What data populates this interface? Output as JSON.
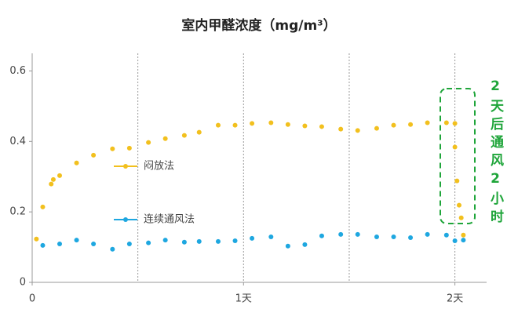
{
  "chart_data": {
    "type": "scatter",
    "title": "室内甲醛浓度（mg/m³）",
    "xlim": [
      0,
      2.15
    ],
    "ylim": [
      0,
      0.65
    ],
    "xticks": [
      0,
      {
        "value": 1,
        "label": "1天"
      },
      {
        "value": 2,
        "label": "2天"
      }
    ],
    "yticks": [
      0,
      0.2,
      0.4,
      0.6
    ],
    "x_gridlines": [
      0.5,
      1,
      1.5,
      2
    ],
    "legend_position": "center-left",
    "annotation": "2天后通风2小时",
    "series": [
      {
        "name": "闷放法",
        "color": "#f2c01e",
        "x": [
          0.02,
          0.05,
          0.09,
          0.1,
          0.13,
          0.21,
          0.29,
          0.38,
          0.46,
          0.55,
          0.63,
          0.72,
          0.79,
          0.88,
          0.96,
          1.04,
          1.13,
          1.21,
          1.29,
          1.37,
          1.46,
          1.54,
          1.63,
          1.71,
          1.79,
          1.87,
          1.96,
          2.0,
          2.0,
          2.01,
          2.02,
          2.03,
          2.04
        ],
        "values": [
          0.123,
          0.214,
          0.279,
          0.292,
          0.303,
          0.339,
          0.361,
          0.379,
          0.381,
          0.397,
          0.408,
          0.417,
          0.426,
          0.446,
          0.446,
          0.451,
          0.453,
          0.448,
          0.444,
          0.442,
          0.435,
          0.431,
          0.437,
          0.446,
          0.448,
          0.453,
          0.453,
          0.451,
          0.384,
          0.288,
          0.219,
          0.183,
          0.134
        ]
      },
      {
        "name": "连续通风法",
        "color": "#1ea7e0",
        "x": [
          0.05,
          0.13,
          0.21,
          0.29,
          0.38,
          0.46,
          0.55,
          0.63,
          0.72,
          0.79,
          0.88,
          0.96,
          1.04,
          1.13,
          1.21,
          1.29,
          1.37,
          1.46,
          1.54,
          1.63,
          1.71,
          1.79,
          1.87,
          1.96,
          2.0,
          2.04
        ],
        "values": [
          0.105,
          0.109,
          0.12,
          0.109,
          0.094,
          0.109,
          0.112,
          0.12,
          0.114,
          0.116,
          0.116,
          0.118,
          0.125,
          0.129,
          0.103,
          0.107,
          0.132,
          0.136,
          0.136,
          0.129,
          0.129,
          0.127,
          0.136,
          0.134,
          0.118,
          0.12
        ]
      }
    ]
  }
}
